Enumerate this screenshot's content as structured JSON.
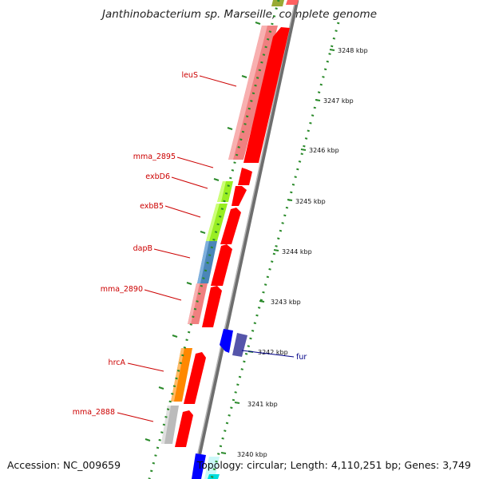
{
  "title": "Janthinobacterium sp. Marseille, complete genome",
  "footer": {
    "accession": "Accession: NC_009659",
    "summary": "Topology: circular; Length: 4,110,251 bp; Genes: 3,749"
  },
  "colors": {
    "label_red": "#cc0000",
    "label_blue": "#000088",
    "tick_green": "#2a8a2a",
    "backbone": "#808080",
    "cds_red": "#ff0000",
    "salmon": "#f08080",
    "lime": "#99ee22",
    "steel": "#4a86b8",
    "orange": "#ff8800",
    "grey": "#bbbbbb",
    "blue": "#0000ff",
    "slate": "#5555aa",
    "cyan": "#00dddd"
  },
  "ticks": [
    "3248 kbp",
    "3247 kbp",
    "3246 kbp",
    "3245 kbp",
    "3244 kbp",
    "3243 kbp",
    "3242 kbp",
    "3241 kbp",
    "3240 kbp"
  ],
  "gene_labels": [
    "leuS",
    "mma_2895",
    "exbD6",
    "exbB5",
    "dapB",
    "mma_2890",
    "hrcA",
    "mma_2888",
    "fur"
  ]
}
